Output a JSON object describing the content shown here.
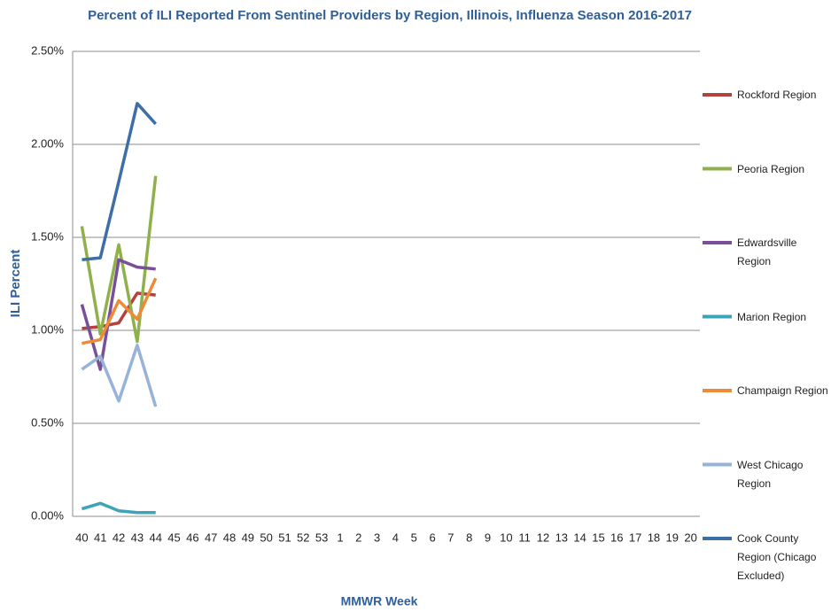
{
  "chart_data": {
    "type": "line",
    "title": "Percent of ILI Reported From Sentinel Providers by Region, Illinois, Influenza Season 2016-2017",
    "x_label": "MMWR Week",
    "y_label": "ILI Percent",
    "categories": [
      "40",
      "41",
      "42",
      "43",
      "44",
      "45",
      "46",
      "47",
      "48",
      "49",
      "50",
      "51",
      "52",
      "53",
      "1",
      "2",
      "3",
      "4",
      "5",
      "6",
      "7",
      "8",
      "9",
      "10",
      "11",
      "12",
      "13",
      "14",
      "15",
      "16",
      "17",
      "18",
      "19",
      "20"
    ],
    "ylim": [
      0,
      2.5
    ],
    "yticks": [
      {
        "value": 0,
        "label": "0.00%"
      },
      {
        "value": 0.5,
        "label": "0.50%"
      },
      {
        "value": 1,
        "label": "1.00%"
      },
      {
        "value": 1.5,
        "label": "1.50%"
      },
      {
        "value": 2,
        "label": "2.00%"
      },
      {
        "value": 2.5,
        "label": "2.50%"
      }
    ],
    "grid": true,
    "legend": "right",
    "series": [
      {
        "name": "Rockford Region",
        "color": "#b5413d",
        "values": [
          1.01,
          1.02,
          1.04,
          1.2,
          1.19,
          null,
          null,
          null,
          null,
          null,
          null,
          null,
          null,
          null,
          null,
          null,
          null,
          null,
          null,
          null,
          null,
          null,
          null,
          null,
          null,
          null,
          null,
          null,
          null,
          null,
          null,
          null,
          null,
          null
        ]
      },
      {
        "name": "Peoria Region",
        "color": "#8fb04a",
        "values": [
          1.56,
          0.98,
          1.46,
          0.94,
          1.83,
          null,
          null,
          null,
          null,
          null,
          null,
          null,
          null,
          null,
          null,
          null,
          null,
          null,
          null,
          null,
          null,
          null,
          null,
          null,
          null,
          null,
          null,
          null,
          null,
          null,
          null,
          null,
          null,
          null
        ]
      },
      {
        "name": "Edwardsville Region",
        "color": "#7a4f9a",
        "values": [
          1.14,
          0.79,
          1.38,
          1.34,
          1.33,
          null,
          null,
          null,
          null,
          null,
          null,
          null,
          null,
          null,
          null,
          null,
          null,
          null,
          null,
          null,
          null,
          null,
          null,
          null,
          null,
          null,
          null,
          null,
          null,
          null,
          null,
          null,
          null,
          null
        ]
      },
      {
        "name": "Marion Region",
        "color": "#3fa3b8",
        "values": [
          0.04,
          0.07,
          0.03,
          0.02,
          0.02,
          null,
          null,
          null,
          null,
          null,
          null,
          null,
          null,
          null,
          null,
          null,
          null,
          null,
          null,
          null,
          null,
          null,
          null,
          null,
          null,
          null,
          null,
          null,
          null,
          null,
          null,
          null,
          null,
          null
        ]
      },
      {
        "name": "Champaign Region",
        "color": "#ef8a37",
        "values": [
          0.93,
          0.95,
          1.16,
          1.06,
          1.28,
          null,
          null,
          null,
          null,
          null,
          null,
          null,
          null,
          null,
          null,
          null,
          null,
          null,
          null,
          null,
          null,
          null,
          null,
          null,
          null,
          null,
          null,
          null,
          null,
          null,
          null,
          null,
          null,
          null
        ]
      },
      {
        "name": "West Chicago Region",
        "color": "#98b3da",
        "values": [
          0.79,
          0.86,
          0.62,
          0.92,
          0.59,
          null,
          null,
          null,
          null,
          null,
          null,
          null,
          null,
          null,
          null,
          null,
          null,
          null,
          null,
          null,
          null,
          null,
          null,
          null,
          null,
          null,
          null,
          null,
          null,
          null,
          null,
          null,
          null,
          null
        ]
      },
      {
        "name": "Cook County Region (Chicago Excluded)",
        "color": "#3d6ea8",
        "values": [
          1.38,
          1.39,
          1.8,
          2.22,
          2.11,
          null,
          null,
          null,
          null,
          null,
          null,
          null,
          null,
          null,
          null,
          null,
          null,
          null,
          null,
          null,
          null,
          null,
          null,
          null,
          null,
          null,
          null,
          null,
          null,
          null,
          null,
          null,
          null,
          null
        ]
      }
    ]
  }
}
